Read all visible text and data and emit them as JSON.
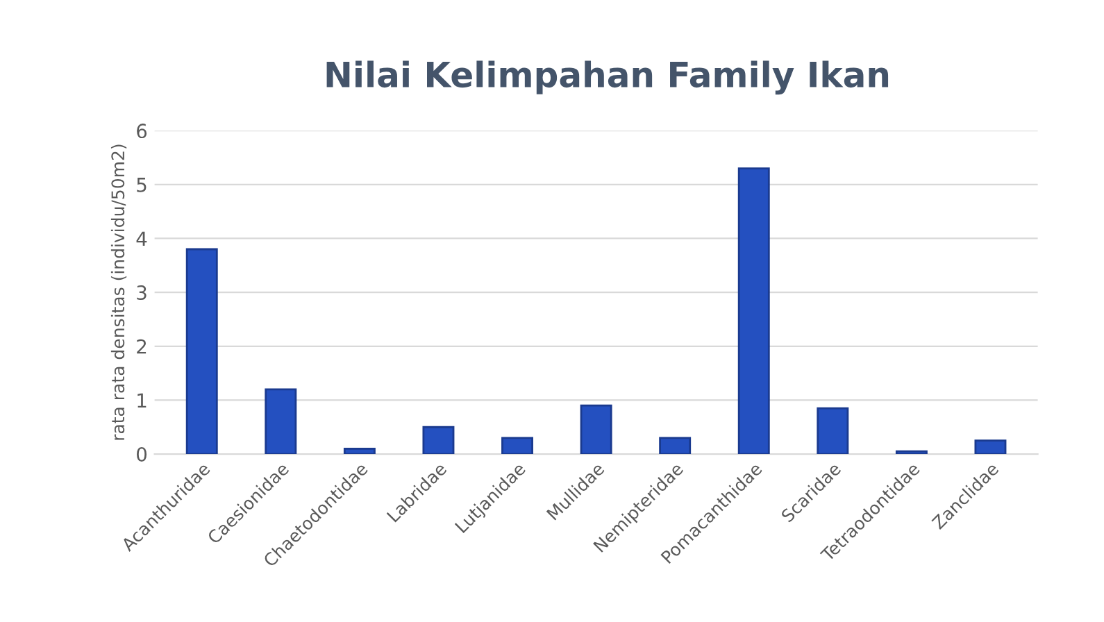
{
  "chart_data": {
    "type": "bar",
    "title": "Nilai Kelimpahan Family Ikan",
    "ylabel": "rata rata densitas (individu/50m2)",
    "categories": [
      "Acanthuridae",
      "Caesionidae",
      "Chaetodontidae",
      "Labridae",
      "Lutjanidae",
      "Mullidae",
      "Nemipteridae",
      "Pomacanthidae",
      "Scaridae",
      "Tetraodontidae",
      "Zanclidae"
    ],
    "values": [
      3.8,
      1.2,
      0.1,
      0.5,
      0.3,
      0.9,
      0.3,
      5.3,
      0.85,
      0.05,
      0.25
    ],
    "color": "#2450c0",
    "ylim": [
      0,
      6
    ],
    "yticks": [
      0,
      1,
      2,
      3,
      4,
      5,
      6
    ],
    "grid": "y"
  }
}
